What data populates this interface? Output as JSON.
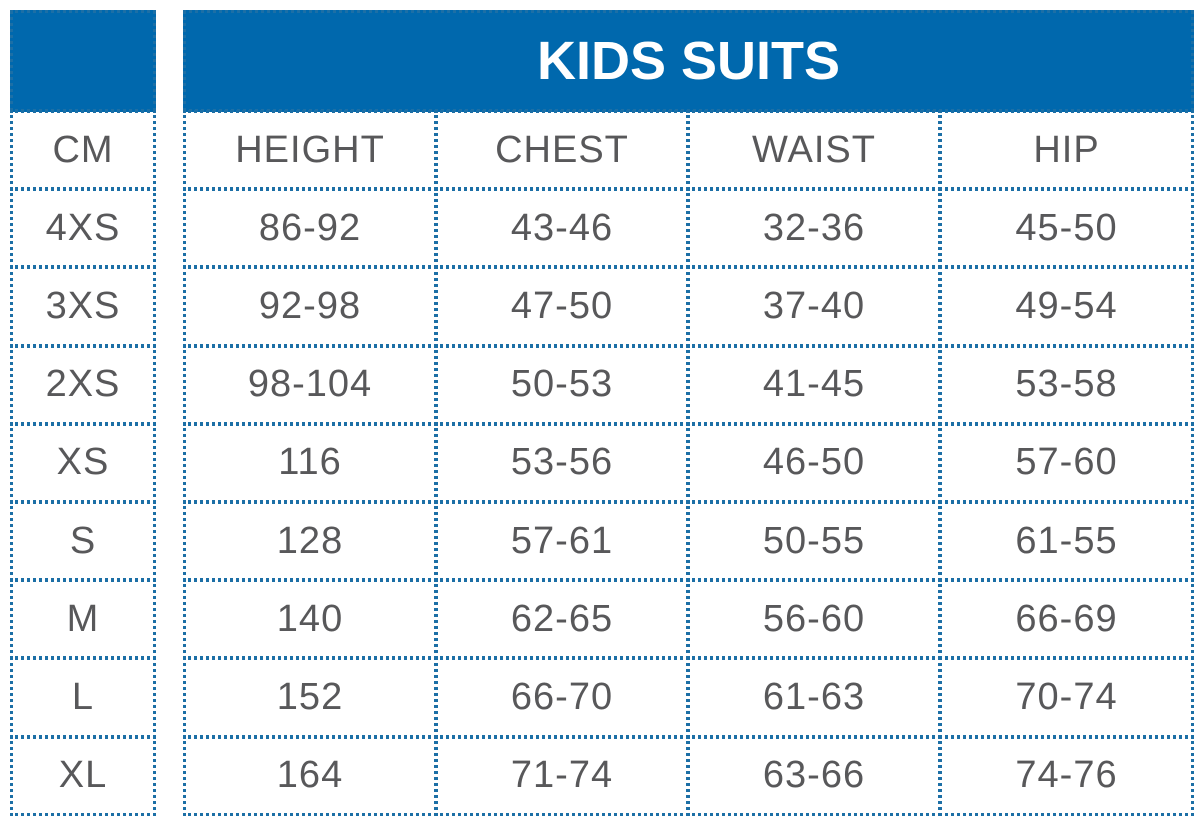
{
  "header": {
    "title": "KIDS SUITS"
  },
  "table": {
    "columns": [
      "CM",
      "HEIGHT",
      "CHEST",
      "WAIST",
      "HIP"
    ],
    "rows": [
      [
        "4XS",
        "86-92",
        "43-46",
        "32-36",
        "45-50"
      ],
      [
        "3XS",
        "92-98",
        "47-50",
        "37-40",
        "49-54"
      ],
      [
        "2XS",
        "98-104",
        "50-53",
        "41-45",
        "53-58"
      ],
      [
        "XS",
        "116",
        "53-56",
        "46-50",
        "57-60"
      ],
      [
        "S",
        "128",
        "57-61",
        "50-55",
        "61-55"
      ],
      [
        "M",
        "140",
        "62-65",
        "56-60",
        "66-69"
      ],
      [
        "L",
        "152",
        "66-70",
        "61-63",
        "70-74"
      ],
      [
        "XL",
        "164",
        "71-74",
        "63-66",
        "74-76"
      ]
    ]
  }
}
